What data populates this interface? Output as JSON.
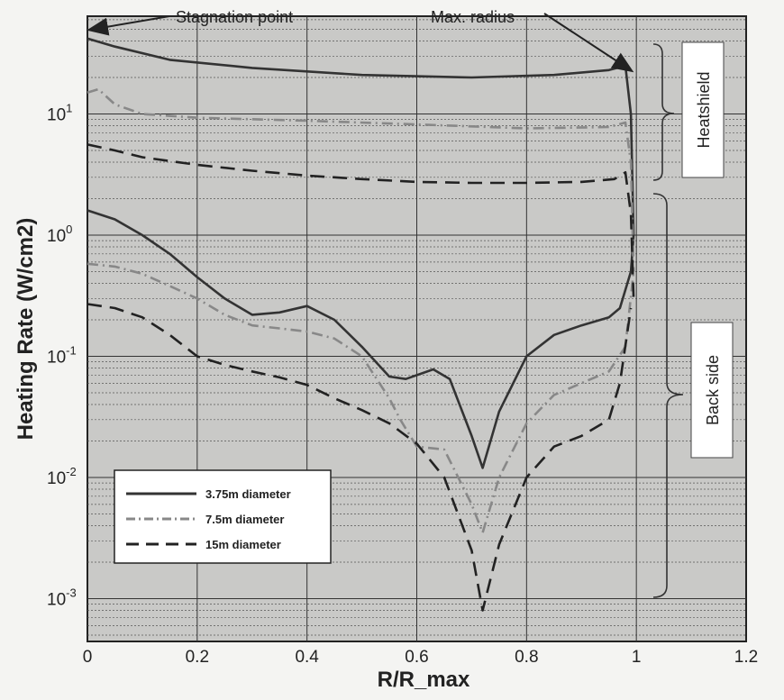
{
  "chart_data": {
    "type": "line",
    "xlabel": "R/R_max",
    "ylabel": "Heating Rate (W/cm2)",
    "xlim": [
      0,
      1.2
    ],
    "ylim": [
      0.0007,
      50
    ],
    "yscale": "log",
    "grid": true,
    "legend_position": "lower-left",
    "x_ticks": [
      "0",
      "0.2",
      "0.4",
      "0.6",
      "0.8",
      "1",
      "1.2"
    ],
    "y_ticks": [
      {
        "base": "10",
        "exp": "-3"
      },
      {
        "base": "10",
        "exp": "-2"
      },
      {
        "base": "10",
        "exp": "-1"
      },
      {
        "base": "10",
        "exp": "0"
      },
      {
        "base": "10",
        "exp": "1"
      }
    ],
    "annotations": {
      "stagnation": "Stagnation point",
      "max_radius": "Max. radius"
    },
    "regions": {
      "heatshield": "Heatshield",
      "back_side": "Back side"
    },
    "series": [
      {
        "name": "3.75m diameter",
        "style": "solid",
        "color": "#333333",
        "heatshield": [
          [
            0,
            42
          ],
          [
            0.05,
            36
          ],
          [
            0.15,
            28
          ],
          [
            0.3,
            24
          ],
          [
            0.5,
            21
          ],
          [
            0.7,
            20
          ],
          [
            0.85,
            21
          ],
          [
            0.95,
            23
          ],
          [
            0.98,
            25
          ],
          [
            0.99,
            10
          ],
          [
            0.995,
            1
          ]
        ],
        "back_side": [
          [
            0,
            1.6
          ],
          [
            0.05,
            1.35
          ],
          [
            0.1,
            1.0
          ],
          [
            0.15,
            0.7
          ],
          [
            0.2,
            0.45
          ],
          [
            0.25,
            0.3
          ],
          [
            0.3,
            0.22
          ],
          [
            0.35,
            0.23
          ],
          [
            0.4,
            0.26
          ],
          [
            0.45,
            0.2
          ],
          [
            0.5,
            0.12
          ],
          [
            0.55,
            0.068
          ],
          [
            0.58,
            0.065
          ],
          [
            0.63,
            0.078
          ],
          [
            0.66,
            0.065
          ],
          [
            0.7,
            0.022
          ],
          [
            0.72,
            0.012
          ],
          [
            0.75,
            0.035
          ],
          [
            0.8,
            0.1
          ],
          [
            0.85,
            0.15
          ],
          [
            0.9,
            0.18
          ],
          [
            0.95,
            0.21
          ],
          [
            0.97,
            0.25
          ],
          [
            0.99,
            0.5
          ],
          [
            0.995,
            1
          ]
        ]
      },
      {
        "name": "7.5m diameter",
        "style": "dashdot",
        "color": "#888888",
        "heatshield": [
          [
            0,
            15
          ],
          [
            0.02,
            16
          ],
          [
            0.05,
            12
          ],
          [
            0.1,
            10
          ],
          [
            0.2,
            9.3
          ],
          [
            0.4,
            8.8
          ],
          [
            0.6,
            8.2
          ],
          [
            0.8,
            7.6
          ],
          [
            0.95,
            7.8
          ],
          [
            0.98,
            8.5
          ],
          [
            0.99,
            4
          ],
          [
            0.995,
            0.5
          ]
        ],
        "back_side": [
          [
            0,
            0.58
          ],
          [
            0.05,
            0.55
          ],
          [
            0.1,
            0.48
          ],
          [
            0.15,
            0.38
          ],
          [
            0.2,
            0.3
          ],
          [
            0.25,
            0.22
          ],
          [
            0.3,
            0.18
          ],
          [
            0.35,
            0.17
          ],
          [
            0.4,
            0.16
          ],
          [
            0.45,
            0.14
          ],
          [
            0.5,
            0.1
          ],
          [
            0.55,
            0.045
          ],
          [
            0.57,
            0.03
          ],
          [
            0.6,
            0.018
          ],
          [
            0.65,
            0.017
          ],
          [
            0.7,
            0.006
          ],
          [
            0.72,
            0.0035
          ],
          [
            0.75,
            0.01
          ],
          [
            0.8,
            0.028
          ],
          [
            0.85,
            0.048
          ],
          [
            0.9,
            0.06
          ],
          [
            0.95,
            0.075
          ],
          [
            0.98,
            0.12
          ],
          [
            0.995,
            0.5
          ]
        ]
      },
      {
        "name": "15m diameter",
        "style": "dashed",
        "color": "#222222",
        "heatshield": [
          [
            0,
            5.6
          ],
          [
            0.05,
            5
          ],
          [
            0.1,
            4.4
          ],
          [
            0.2,
            3.8
          ],
          [
            0.3,
            3.4
          ],
          [
            0.4,
            3.1
          ],
          [
            0.5,
            2.9
          ],
          [
            0.6,
            2.75
          ],
          [
            0.7,
            2.7
          ],
          [
            0.8,
            2.7
          ],
          [
            0.9,
            2.75
          ],
          [
            0.96,
            2.9
          ],
          [
            0.98,
            3.3
          ],
          [
            0.99,
            1.5
          ],
          [
            0.995,
            0.3
          ]
        ],
        "back_side": [
          [
            0,
            0.27
          ],
          [
            0.05,
            0.25
          ],
          [
            0.1,
            0.21
          ],
          [
            0.15,
            0.15
          ],
          [
            0.2,
            0.1
          ],
          [
            0.25,
            0.085
          ],
          [
            0.3,
            0.075
          ],
          [
            0.35,
            0.067
          ],
          [
            0.4,
            0.058
          ],
          [
            0.45,
            0.045
          ],
          [
            0.5,
            0.036
          ],
          [
            0.55,
            0.028
          ],
          [
            0.6,
            0.019
          ],
          [
            0.65,
            0.01
          ],
          [
            0.7,
            0.0025
          ],
          [
            0.72,
            0.0008
          ],
          [
            0.75,
            0.0028
          ],
          [
            0.8,
            0.01
          ],
          [
            0.85,
            0.018
          ],
          [
            0.9,
            0.022
          ],
          [
            0.95,
            0.03
          ],
          [
            0.97,
            0.06
          ],
          [
            0.99,
            0.25
          ]
        ]
      }
    ]
  }
}
